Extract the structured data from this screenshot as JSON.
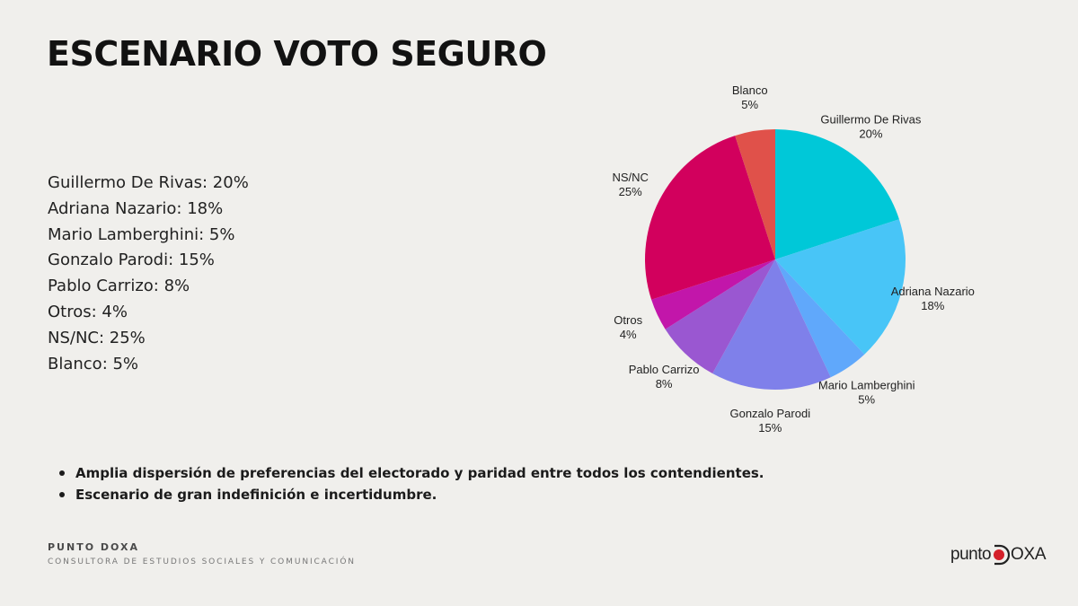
{
  "title": "ESCENARIO VOTO SEGURO",
  "summary": [
    "Guillermo De Rivas: 20%",
    "Adriana Nazario: 18%",
    "Mario Lamberghini: 5%",
    "Gonzalo Parodi: 15%",
    "Pablo Carrizo: 8%",
    "Otros: 4%",
    "NS/NC: 25%",
    "Blanco: 5%"
  ],
  "chart_data": {
    "type": "pie",
    "title": "",
    "slices": [
      {
        "label": "Guillermo De Rivas",
        "value": 20,
        "value_label": "20%",
        "color": "#00c8d8"
      },
      {
        "label": "Adriana Nazario",
        "value": 18,
        "value_label": "18%",
        "color": "#48c5f7"
      },
      {
        "label": "Mario Lamberghini",
        "value": 5,
        "value_label": "5%",
        "color": "#60a8fb"
      },
      {
        "label": "Gonzalo Parodi",
        "value": 15,
        "value_label": "15%",
        "color": "#7f80ea"
      },
      {
        "label": "Pablo Carrizo",
        "value": 8,
        "value_label": "8%",
        "color": "#9a57d1"
      },
      {
        "label": "Otros",
        "value": 4,
        "value_label": "4%",
        "color": "#c216aa"
      },
      {
        "label": "NS/NC",
        "value": 25,
        "value_label": "25%",
        "color": "#d2005d"
      },
      {
        "label": "Blanco",
        "value": 5,
        "value_label": "5%",
        "color": "#e0514a"
      }
    ]
  },
  "bullets": [
    "Amplia dispersión de preferencias del electorado y paridad entre todos los contendientes.",
    "Escenario de gran indefinición e incertidumbre."
  ],
  "footer": {
    "brand": "PUNTO DOXA",
    "subtitle": "CONSULTORA DE ESTUDIOS SOCIALES Y COMUNICACIÓN"
  },
  "logo": {
    "punto": "punto",
    "doxa": "OXA",
    "accent_color": "#d4202a"
  }
}
